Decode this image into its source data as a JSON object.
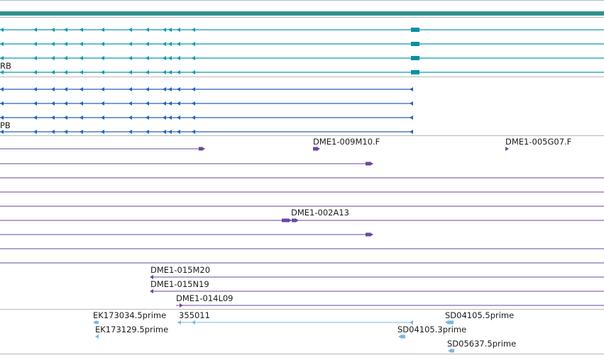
{
  "colors": {
    "mrna": "#0a9bb0",
    "mrna_block": "#098fa3",
    "mrna_top": "#2f8f8d",
    "cds": "#2663b3",
    "est": "#6a46a6",
    "cdna": "#7bb8e0",
    "separator": "#b9b9b9"
  },
  "tracks": [
    {
      "id": "transcripts-mrna",
      "name": "mRNA transcripts track",
      "features": [
        {
          "label": "",
          "strand": "-"
        },
        {
          "label": "",
          "strand": "-"
        },
        {
          "label": "",
          "strand": "-"
        },
        {
          "label": "RB",
          "strand": "-"
        }
      ]
    },
    {
      "id": "transcripts-cds",
      "name": "coding sequence track",
      "features": [
        {
          "label": "",
          "strand": "-"
        },
        {
          "label": "",
          "strand": "-"
        },
        {
          "label": "",
          "strand": "-"
        },
        {
          "label": "PB",
          "strand": "-"
        }
      ]
    },
    {
      "id": "est-alignments",
      "name": "EST alignment track",
      "labels": [
        "DME1-009M10.F",
        "DME1-005G07.F",
        "DME1-002A13",
        "DME1-015M20",
        "DME1-015N19",
        "DME1-014L09"
      ]
    },
    {
      "id": "cdna-alignments",
      "name": "cDNA alignment track",
      "labels": [
        "EK173034.5prime",
        "355011",
        "SD04105.5prime",
        "EK173129.5prime",
        "SD04105.3prime",
        "SD05637.5prime"
      ]
    }
  ]
}
